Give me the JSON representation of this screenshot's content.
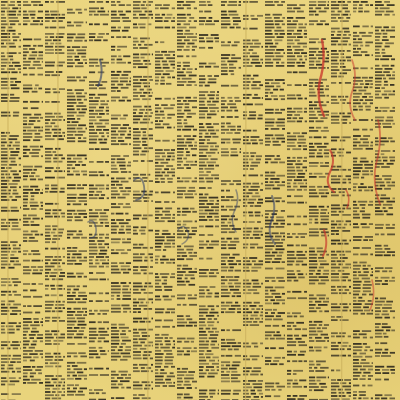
{
  "artwork": {
    "description_name": "ledger-text-collage",
    "colors": {
      "paper": "#e8d27a",
      "ink": "#2e2a1e",
      "ink_light": "#5a5236",
      "red_mark": "#c8322a",
      "blue_mark": "#2b3a6a",
      "fold_line": "#cdb35f"
    },
    "icon": "printed-number-columns"
  }
}
